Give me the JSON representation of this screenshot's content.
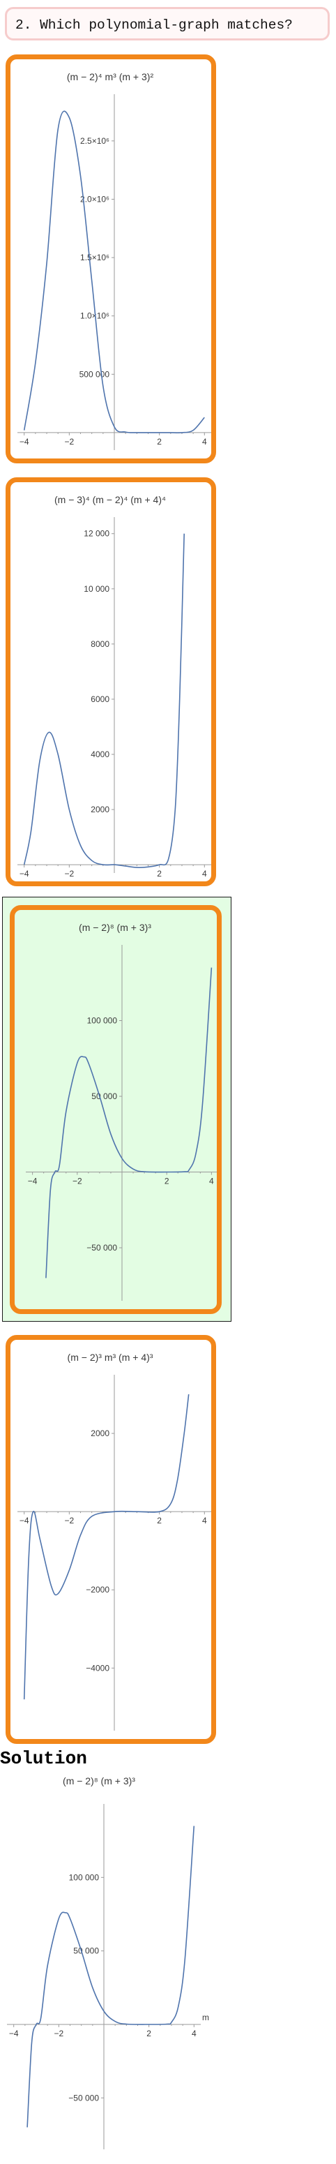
{
  "question": {
    "title": "2. Which polynomial-graph matches?"
  },
  "solution": {
    "heading": "Solution"
  },
  "colors": {
    "card_border": "#f2871a",
    "correct_background": "#e3fde3",
    "curve": "#4f74ad",
    "axis": "#9a9a9a"
  },
  "chart_data": [
    {
      "id": "option-1",
      "type": "line",
      "title": "(m − 2)⁴ m³ (m + 3)²",
      "xlabel": "m",
      "xlim": [
        -4.3,
        4.3
      ],
      "ylim": [
        -150000,
        2900000
      ],
      "x_ticks": [
        -4,
        -2,
        2,
        4
      ],
      "y_ticks": [
        {
          "v": 500000,
          "label": "500 000"
        },
        {
          "v": 1000000,
          "label": "1.0×10⁶"
        },
        {
          "v": 1500000,
          "label": "1.5×10⁶"
        },
        {
          "v": 2000000,
          "label": "2.0×10⁶"
        },
        {
          "v": 2500000,
          "label": "2.5×10⁶"
        }
      ],
      "x_range": [
        -4.0,
        4.0
      ],
      "series": [
        {
          "values": [
            [
              -4.0,
              20000
            ],
            [
              -3.5,
              600000
            ],
            [
              -3.0,
              1450000
            ],
            [
              -2.5,
              2600000
            ],
            [
              -2.0,
              2700000
            ],
            [
              -1.5,
              2200000
            ],
            [
              -1.0,
              1300000
            ],
            [
              -0.5,
              400000
            ],
            [
              0.0,
              50000
            ],
            [
              0.5,
              5000
            ],
            [
              1.0,
              0
            ],
            [
              1.5,
              0
            ],
            [
              2.0,
              0
            ],
            [
              2.5,
              0
            ],
            [
              3.0,
              0
            ],
            [
              3.5,
              20000
            ],
            [
              4.0,
              130000
            ]
          ]
        }
      ]
    },
    {
      "id": "option-2",
      "type": "line",
      "title": "(m − 3)⁴ (m − 2)⁴ (m + 4)⁴",
      "xlabel": "m",
      "xlim": [
        -4.3,
        4.3
      ],
      "ylim": [
        -300,
        12600
      ],
      "x_ticks": [
        -4,
        -2,
        2,
        4
      ],
      "y_ticks": [
        {
          "v": 2000,
          "label": "2000"
        },
        {
          "v": 4000,
          "label": "4000"
        },
        {
          "v": 6000,
          "label": "6000"
        },
        {
          "v": 8000,
          "label": "8000"
        },
        {
          "v": 10000,
          "label": "10 000"
        },
        {
          "v": 12000,
          "label": "12 000"
        }
      ],
      "x_range": [
        -4.0,
        3.1
      ],
      "series": [
        {
          "values": [
            [
              -4.0,
              0
            ],
            [
              -3.7,
              1200
            ],
            [
              -3.3,
              3800
            ],
            [
              -2.9,
              4800
            ],
            [
              -2.5,
              4000
            ],
            [
              -2.0,
              2000
            ],
            [
              -1.5,
              700
            ],
            [
              -1.0,
              150
            ],
            [
              -0.5,
              0
            ],
            [
              0.0,
              0
            ],
            [
              0.5,
              -50
            ],
            [
              1.0,
              -100
            ],
            [
              1.5,
              -80
            ],
            [
              2.0,
              0
            ],
            [
              2.4,
              200
            ],
            [
              2.7,
              2000
            ],
            [
              2.9,
              6000
            ],
            [
              3.1,
              12000
            ]
          ]
        }
      ]
    },
    {
      "id": "option-3",
      "type": "line",
      "title": "(m − 2)⁸ (m + 3)³",
      "xlabel": "m",
      "xlim": [
        -4.3,
        4.3
      ],
      "ylim": [
        -85000,
        150000
      ],
      "x_ticks": [
        -4,
        -2,
        2,
        4
      ],
      "y_ticks": [
        {
          "v": -50000,
          "label": "−50 000"
        },
        {
          "v": 50000,
          "label": "50 000"
        },
        {
          "v": 100000,
          "label": "100 000"
        }
      ],
      "x_range": [
        -3.4,
        4.0
      ],
      "series": [
        {
          "values": [
            [
              -3.4,
              -70000
            ],
            [
              -3.2,
              -12000
            ],
            [
              -3.0,
              0
            ],
            [
              -2.8,
              4000
            ],
            [
              -2.5,
              40000
            ],
            [
              -2.0,
              72000
            ],
            [
              -1.7,
              76000
            ],
            [
              -1.5,
              72000
            ],
            [
              -1.0,
              50000
            ],
            [
              -0.5,
              25000
            ],
            [
              0.0,
              9000
            ],
            [
              0.5,
              2000
            ],
            [
              1.0,
              200
            ],
            [
              2.0,
              0
            ],
            [
              2.8,
              200
            ],
            [
              3.0,
              1500
            ],
            [
              3.3,
              12000
            ],
            [
              3.6,
              45000
            ],
            [
              4.0,
              135000
            ]
          ]
        }
      ]
    },
    {
      "id": "option-4",
      "type": "line",
      "title": "(m − 2)³ m³ (m + 4)³",
      "xlabel": "m",
      "xlim": [
        -4.3,
        4.3
      ],
      "ylim": [
        -5600,
        3500
      ],
      "x_ticks": [
        -4,
        -2,
        2,
        4
      ],
      "y_ticks": [
        {
          "v": -4000,
          "label": "−4000"
        },
        {
          "v": -2000,
          "label": "−2000"
        },
        {
          "v": 2000,
          "label": "2000"
        }
      ],
      "x_range": [
        -4.0,
        3.3
      ],
      "series": [
        {
          "values": [
            [
              -4.0,
              -4800
            ],
            [
              -3.8,
              -1200
            ],
            [
              -3.6,
              0
            ],
            [
              -3.3,
              -700
            ],
            [
              -2.8,
              -1900
            ],
            [
              -2.5,
              -2100
            ],
            [
              -2.0,
              -1500
            ],
            [
              -1.5,
              -600
            ],
            [
              -1.0,
              -120
            ],
            [
              0.0,
              0
            ],
            [
              1.0,
              0
            ],
            [
              2.0,
              0
            ],
            [
              2.5,
              200
            ],
            [
              2.8,
              800
            ],
            [
              3.1,
              2000
            ],
            [
              3.3,
              3000
            ]
          ]
        }
      ]
    },
    {
      "id": "solution",
      "type": "line",
      "title": "(m − 2)⁸ (m + 3)³",
      "xlabel": "m",
      "xlim": [
        -4.3,
        4.3
      ],
      "ylim": [
        -85000,
        150000
      ],
      "x_ticks": [
        -4,
        -2,
        2,
        4
      ],
      "y_ticks": [
        {
          "v": -50000,
          "label": "−50 000"
        },
        {
          "v": 50000,
          "label": "50 000"
        },
        {
          "v": 100000,
          "label": "100 000"
        }
      ],
      "x_range": [
        -3.4,
        4.0
      ],
      "series": [
        {
          "values": [
            [
              -3.4,
              -70000
            ],
            [
              -3.2,
              -12000
            ],
            [
              -3.0,
              0
            ],
            [
              -2.8,
              4000
            ],
            [
              -2.5,
              40000
            ],
            [
              -2.0,
              72000
            ],
            [
              -1.7,
              76000
            ],
            [
              -1.5,
              72000
            ],
            [
              -1.0,
              50000
            ],
            [
              -0.5,
              25000
            ],
            [
              0.0,
              9000
            ],
            [
              0.5,
              2000
            ],
            [
              1.0,
              200
            ],
            [
              2.0,
              0
            ],
            [
              2.8,
              200
            ],
            [
              3.0,
              1500
            ],
            [
              3.3,
              12000
            ],
            [
              3.6,
              45000
            ],
            [
              4.0,
              135000
            ]
          ]
        }
      ]
    }
  ]
}
